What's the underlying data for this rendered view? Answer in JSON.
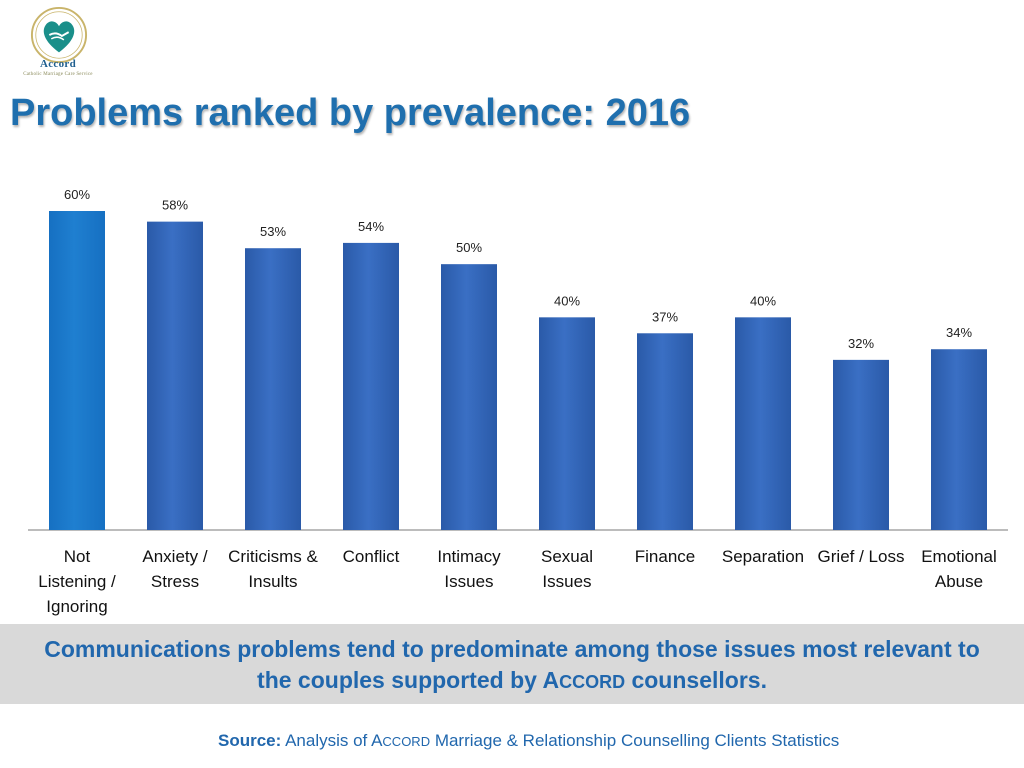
{
  "logo": {
    "wordmark": "Accord",
    "tagline": "Catholic Marriage Care Service"
  },
  "title": "Problems ranked by prevalence: 2016",
  "chart_data": {
    "type": "bar",
    "categories": [
      "Not Listening / Ignoring",
      "Anxiety / Stress",
      "Criticisms & Insults",
      "Conflict",
      "Intimacy Issues",
      "Sexual Issues",
      "Finance",
      "Separation",
      "Grief / Loss",
      "Emotional Abuse"
    ],
    "category_lines": [
      [
        "Not",
        "Listening /",
        "Ignoring"
      ],
      [
        "Anxiety /",
        "Stress"
      ],
      [
        "Criticisms &",
        "Insults"
      ],
      [
        "Conflict"
      ],
      [
        "Intimacy",
        "Issues"
      ],
      [
        "Sexual",
        "Issues"
      ],
      [
        "Finance"
      ],
      [
        "Separation"
      ],
      [
        "Grief / Loss"
      ],
      [
        "Emotional",
        "Abuse"
      ]
    ],
    "values": [
      60,
      58,
      53,
      54,
      50,
      40,
      37,
      40,
      32,
      34
    ],
    "data_labels": [
      "60%",
      "58%",
      "53%",
      "54%",
      "50%",
      "40%",
      "37%",
      "40%",
      "32%",
      "34%"
    ],
    "title": "",
    "xlabel": "",
    "ylabel": "",
    "ylim": [
      0,
      60
    ],
    "grid": false,
    "legend": "none",
    "colors": {
      "highlight": "#1f7fd0",
      "bar": "#3a6fc4",
      "bar_dark": "#2a5aa8",
      "axis": "#a6a6a6"
    }
  },
  "banner": {
    "line1": "Communications problems tend to predominate among those issues most relevant to",
    "line2_pre": "the couples supported by ",
    "line2_brand_first": "A",
    "line2_brand_rest": "ccord",
    "line2_post": " counsellors."
  },
  "source": {
    "label": "Source:",
    "pre": " Analysis of ",
    "brand_first": "A",
    "brand_rest": "ccord",
    "post": " Marriage & Relationship Counselling Clients Statistics"
  }
}
